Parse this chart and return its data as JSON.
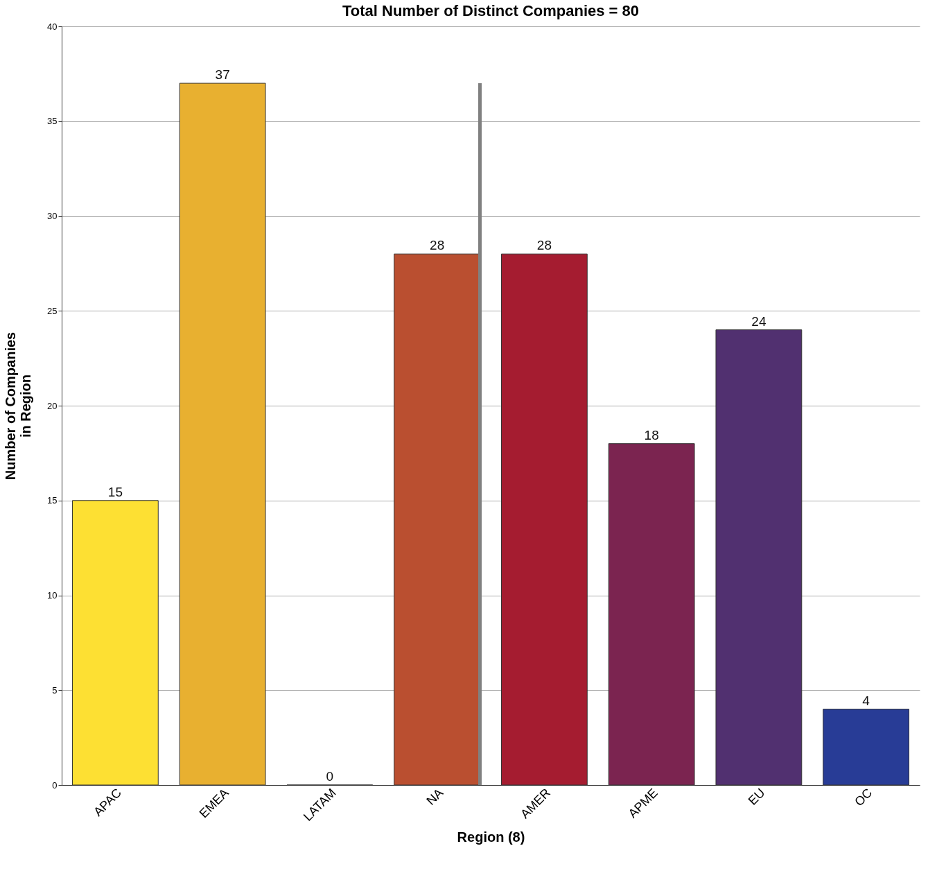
{
  "chart_data": {
    "type": "bar",
    "title": "Total Number of Distinct Companies = 80",
    "xlabel": "Region (8)",
    "ylabel": "Number of Companies\nin Region",
    "categories": [
      "APAC",
      "EMEA",
      "LATAM",
      "NA",
      "AMER",
      "APME",
      "EU",
      "OC"
    ],
    "values": [
      15,
      37,
      0,
      28,
      28,
      18,
      24,
      4
    ],
    "colors": [
      "#fde033",
      "#e8b030",
      "#d98c2e",
      "#ba4f30",
      "#a51c30",
      "#7b2450",
      "#513070",
      "#283c96"
    ],
    "ylim": [
      0,
      40
    ],
    "yticks": [
      0,
      5,
      10,
      15,
      20,
      25,
      30,
      35,
      40
    ],
    "grid": "y",
    "data_labels": true,
    "ref_lines": [
      {
        "axis": "x",
        "value": "NA",
        "color": "#808080"
      }
    ]
  }
}
